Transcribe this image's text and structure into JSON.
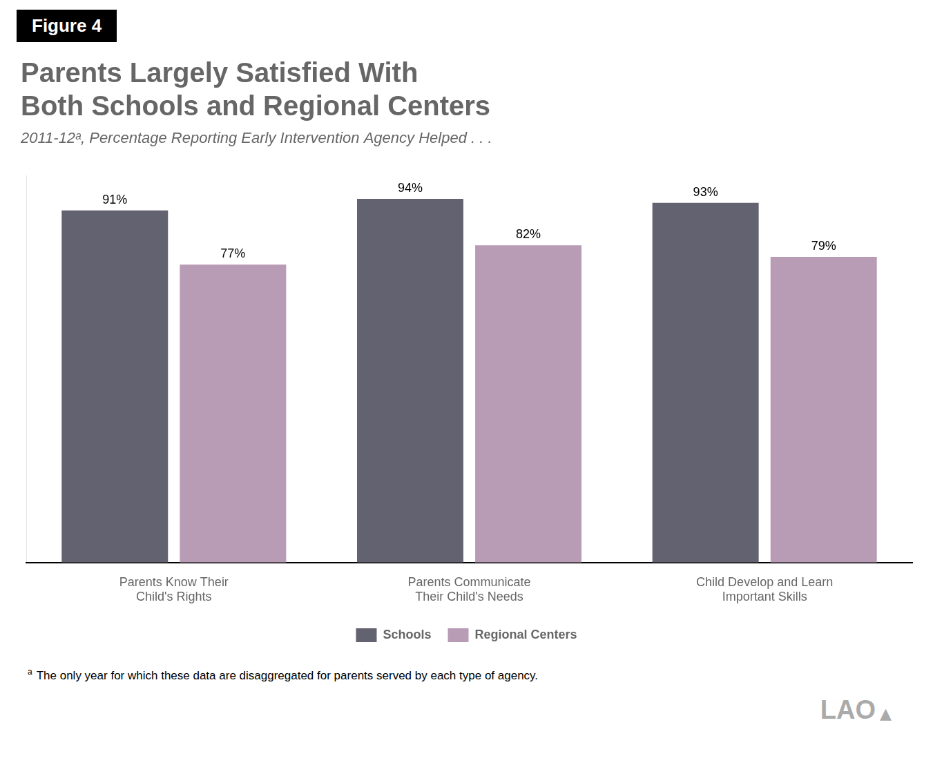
{
  "chart_data": {
    "type": "bar",
    "title": [
      "Parents Largely Satisfied With",
      "Both Schools and Regional Centers"
    ],
    "subtitle": "2011-12ᵃ, Percentage Reporting Early Intervention Agency Helped . . .",
    "categories": [
      "Parents Know Their\nChild's Rights",
      "Parents Communicate\nTheir Child's Needs",
      "Child Develop and Learn\nImportant Skills"
    ],
    "series": [
      {
        "name": "Schools",
        "color": "#636270",
        "values": [
          91,
          94,
          93
        ],
        "value_labels": [
          "91%",
          "94%",
          "93%"
        ]
      },
      {
        "name": "Regional Centers",
        "color": "#b89bb5",
        "values": [
          77,
          82,
          79
        ],
        "value_labels": [
          "77%",
          "82%",
          "79%"
        ]
      }
    ],
    "ylim": [
      0,
      100
    ],
    "grid": false,
    "legend": "bottom",
    "data_labels": true,
    "tick_labels": "x",
    "annotations": [
      "Figure 4",
      "a",
      "The only year for which these data are disaggregated for parents served by each type of agency.",
      "LAO",
      "▲"
    ]
  }
}
